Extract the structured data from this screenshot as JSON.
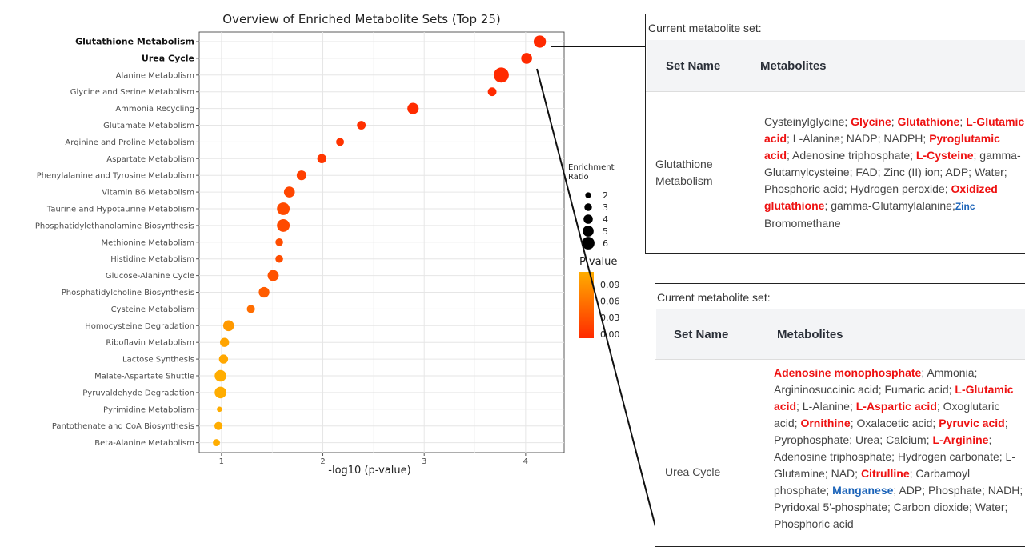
{
  "chart_data": {
    "type": "scatter",
    "title": "Overview of Enriched Metabolite Sets (Top 25)",
    "xlabel": "-log10 (p-value)",
    "ylabel": "",
    "xlim": [
      0.78,
      4.38
    ],
    "xticks": [
      1,
      2,
      3,
      4
    ],
    "grid": true,
    "legend_placement": "right",
    "size_legend": {
      "title": "Enrichment Ratio",
      "values": [
        2,
        3,
        4,
        5,
        6
      ]
    },
    "color_legend": {
      "title": "P-value",
      "ticks": [
        "0.09",
        "0.06",
        "0.03",
        "0.00"
      ],
      "low_color": "#ff2a00",
      "high_color": "#ffad00"
    },
    "points": [
      {
        "label": "Glutathione Metabolism",
        "x": 4.14,
        "p": 0.0001,
        "ratio": 4.7,
        "bold": true
      },
      {
        "label": "Urea Cycle",
        "x": 4.01,
        "p": 0.0001,
        "ratio": 4.0,
        "bold": true
      },
      {
        "label": "Alanine Metabolism",
        "x": 3.76,
        "p": 0.0002,
        "ratio": 6.1,
        "bold": false
      },
      {
        "label": "Glycine and Serine Metabolism",
        "x": 3.67,
        "p": 0.0002,
        "ratio": 2.9,
        "bold": false
      },
      {
        "label": "Ammonia Recycling",
        "x": 2.89,
        "p": 0.0013,
        "ratio": 4.2,
        "bold": false
      },
      {
        "label": "Glutamate Metabolism",
        "x": 2.38,
        "p": 0.0042,
        "ratio": 2.9,
        "bold": false
      },
      {
        "label": "Arginine and Proline Metabolism",
        "x": 2.17,
        "p": 0.0068,
        "ratio": 2.5,
        "bold": false
      },
      {
        "label": "Aspartate Metabolism",
        "x": 1.99,
        "p": 0.0102,
        "ratio": 3.1,
        "bold": false
      },
      {
        "label": "Phenylalanine and Tyrosine Metabolism",
        "x": 1.79,
        "p": 0.0162,
        "ratio": 3.4,
        "bold": false
      },
      {
        "label": "Vitamin B6 Metabolism",
        "x": 1.67,
        "p": 0.0214,
        "ratio": 4.0,
        "bold": false
      },
      {
        "label": "Taurine and Hypotaurine Metabolism",
        "x": 1.61,
        "p": 0.0245,
        "ratio": 4.9,
        "bold": false
      },
      {
        "label": "Phosphatidylethanolamine Biosynthesis",
        "x": 1.61,
        "p": 0.0245,
        "ratio": 4.9,
        "bold": false
      },
      {
        "label": "Methionine Metabolism",
        "x": 1.57,
        "p": 0.0269,
        "ratio": 2.4,
        "bold": false
      },
      {
        "label": "Histidine Metabolism",
        "x": 1.57,
        "p": 0.0269,
        "ratio": 2.4,
        "bold": false
      },
      {
        "label": "Glucose-Alanine Cycle",
        "x": 1.51,
        "p": 0.0309,
        "ratio": 4.1,
        "bold": false
      },
      {
        "label": "Phosphatidylcholine Biosynthesis",
        "x": 1.42,
        "p": 0.038,
        "ratio": 3.9,
        "bold": false
      },
      {
        "label": "Cysteine Metabolism",
        "x": 1.29,
        "p": 0.0513,
        "ratio": 2.6,
        "bold": false
      },
      {
        "label": "Homocysteine Degradation",
        "x": 1.07,
        "p": 0.0851,
        "ratio": 4.0,
        "bold": false
      },
      {
        "label": "Riboflavin Metabolism",
        "x": 1.03,
        "p": 0.0933,
        "ratio": 3.1,
        "bold": false
      },
      {
        "label": "Lactose Synthesis",
        "x": 1.02,
        "p": 0.0955,
        "ratio": 3.1,
        "bold": false
      },
      {
        "label": "Malate-Aspartate Shuttle",
        "x": 0.99,
        "p": 0.1,
        "ratio": 4.4,
        "bold": false
      },
      {
        "label": "Pyruvaldehyde Degradation",
        "x": 0.99,
        "p": 0.1,
        "ratio": 4.4,
        "bold": false
      },
      {
        "label": "Pyrimidine Metabolism",
        "x": 0.98,
        "p": 0.1,
        "ratio": 1.2,
        "bold": false
      },
      {
        "label": "Pantothenate and CoA Biosynthesis",
        "x": 0.97,
        "p": 0.1,
        "ratio": 2.6,
        "bold": false
      },
      {
        "label": "Beta-Alanine Metabolism",
        "x": 0.95,
        "p": 0.1,
        "ratio": 2.1,
        "bold": false
      }
    ]
  },
  "popups": {
    "caption": "Current metabolite set:",
    "col_set_name": "Set Name",
    "col_metabolites": "Metabolites",
    "glutathione": {
      "set_name_1": "Glutathione",
      "set_name_2": "Metabolism",
      "m01": "Cysteinylglycine; ",
      "m02": "Glycine",
      "m03": "; ",
      "m04": "Glutathione",
      "m05": "; ",
      "m06": "L-Glutamic acid",
      "m07": "; L-Alanine; NADP; NADPH; ",
      "m08": "Pyroglutamic acid",
      "m09": "; Adenosine triphosphate; ",
      "m10": "L-Cysteine",
      "m11": "; gamma-Glutamylcysteine; FAD; Zinc (II) ion; ADP; Water; Phosphoric acid; Hydrogen peroxide; ",
      "m12": "Oxidized glutathione",
      "m13": "; gamma-Glutamylalanine;",
      "m14": "Zinc",
      "m15": "Bromomethane"
    },
    "urea": {
      "set_name": "Urea Cycle",
      "m01": "Adenosine monophosphate",
      "m02": "; Ammonia; Argininosuccinic acid; Fumaric acid; ",
      "m03": "L-Glutamic acid",
      "m04": "; L-Alanine; ",
      "m05": "L-Aspartic acid",
      "m06": "; Oxoglutaric acid; ",
      "m07": "Ornithine",
      "m08": "; Oxalacetic acid; ",
      "m09": "Pyruvic acid",
      "m10": "; Pyrophosphate; Urea; Calcium; ",
      "m11": "L-Arginine",
      "m12": "; Adenosine triphosphate; Hydrogen carbonate; L-Glutamine; NAD; ",
      "m13": "Citrulline",
      "m14": "; Carbamoyl phosphate; ",
      "m15": "Manganese",
      "m16": "; ADP; Phosphate; NADH; Pyridoxal 5'-phosphate; Carbon dioxide; Water; Phosphoric acid"
    }
  }
}
